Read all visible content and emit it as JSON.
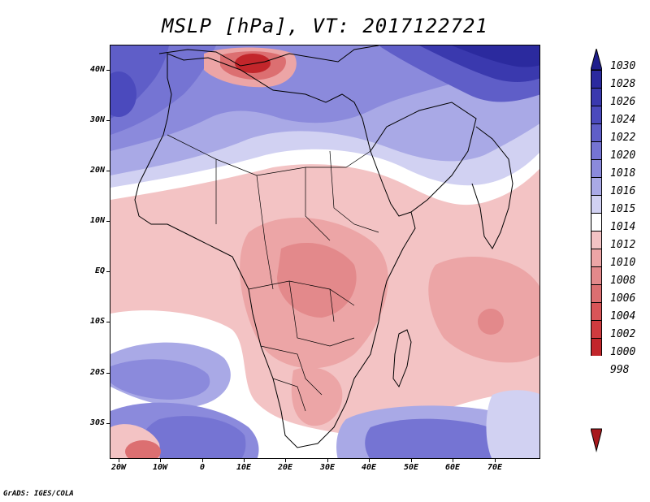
{
  "title": "MSLP [hPa], VT: 2017122721",
  "footer": "GrADS: IGES/COLA",
  "map": {
    "variable": "MSLP",
    "units": "hPa",
    "lat_labels": [
      "40N",
      "30N",
      "20N",
      "10N",
      "EQ",
      "10S",
      "20S",
      "30S"
    ],
    "lon_labels": [
      "20W",
      "10W",
      "0",
      "10E",
      "20E",
      "30E",
      "40E",
      "50E",
      "60E",
      "70E"
    ]
  },
  "legend": {
    "levels": [
      "1030",
      "1028",
      "1026",
      "1024",
      "1022",
      "1020",
      "1018",
      "1016",
      "1015",
      "1014",
      "1012",
      "1010",
      "1008",
      "1006",
      "1004",
      "1002",
      "1000",
      "998"
    ],
    "colors": [
      "#1f1e8c",
      "#2b2a9e",
      "#3a39ae",
      "#4b4abd",
      "#5f5ec8",
      "#7574d3",
      "#8b8adc",
      "#a9a9e6",
      "#d1d1f2",
      "#ffffff",
      "#f3c3c4",
      "#eca5a6",
      "#e3898b",
      "#dc6f71",
      "#d85558",
      "#cf3b3f",
      "#c2262b",
      "#a8191d"
    ]
  }
}
